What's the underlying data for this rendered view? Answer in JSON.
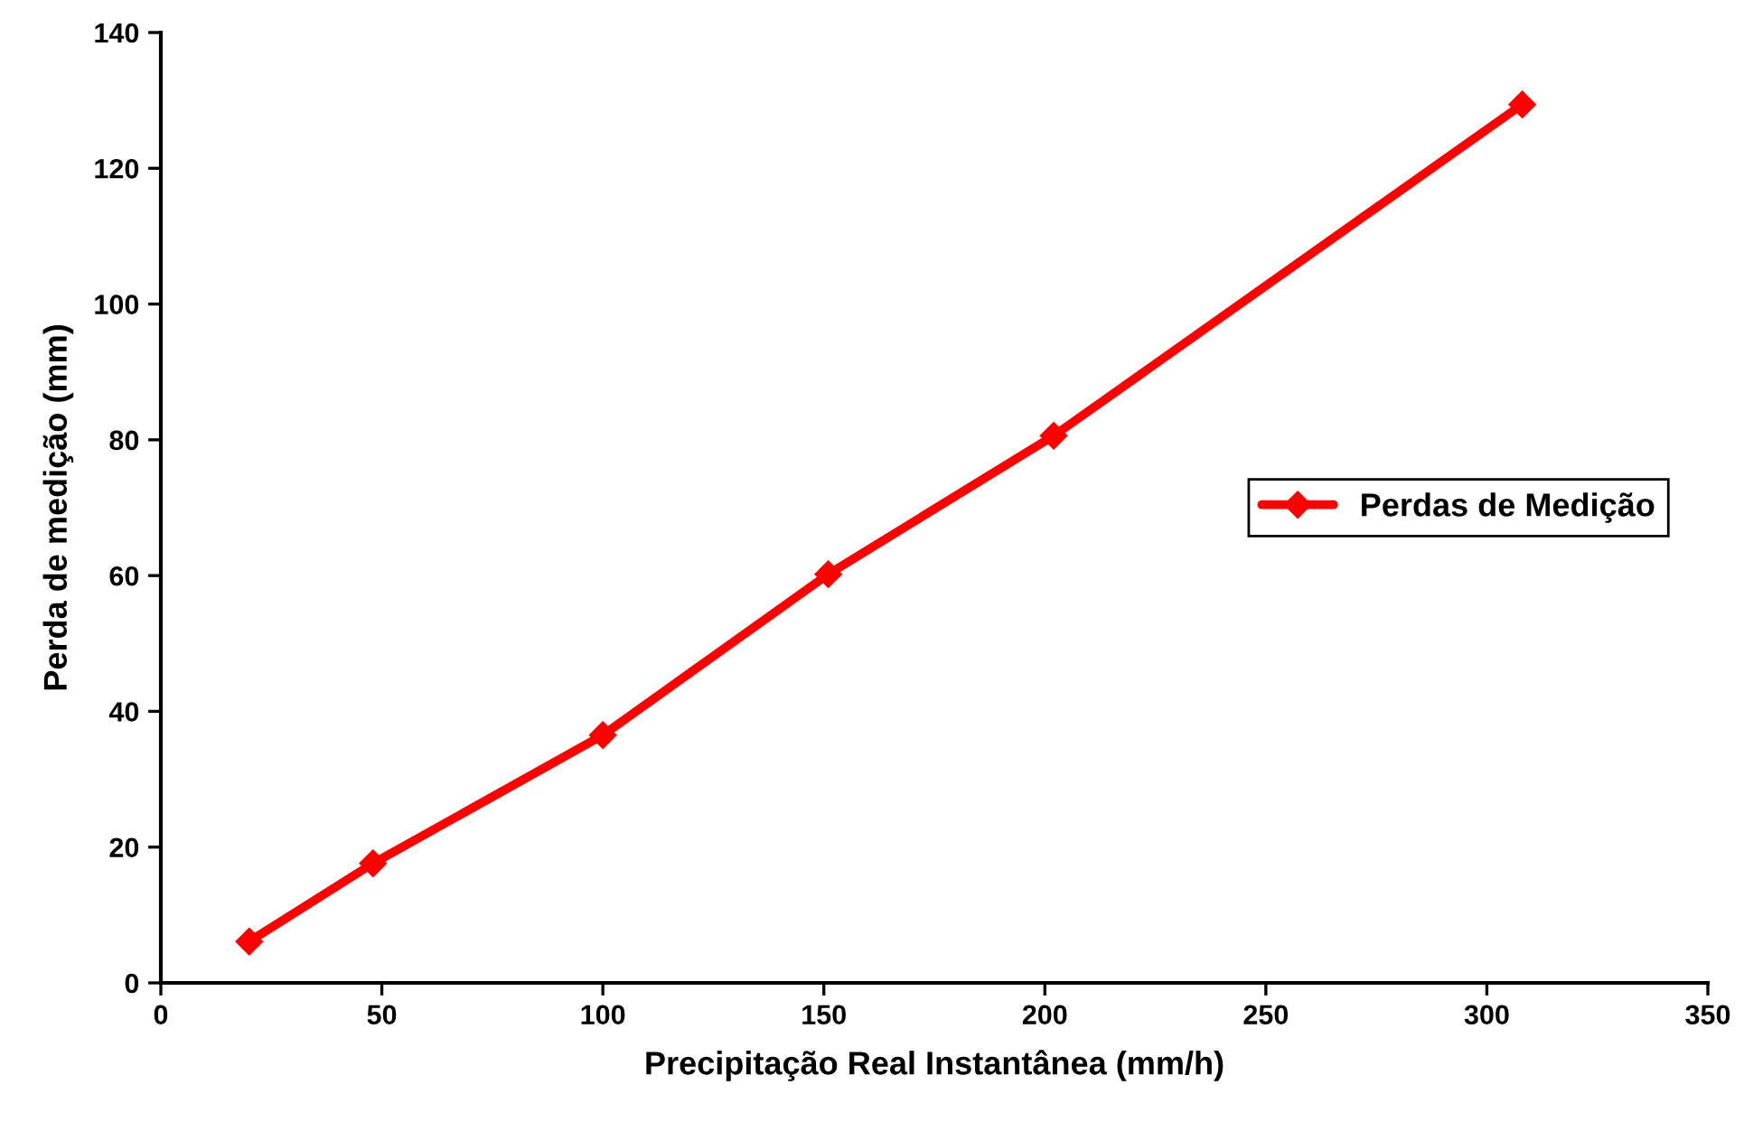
{
  "chart_data": {
    "type": "line",
    "xlabel": "Precipitação Real Instantânea (mm/h)",
    "ylabel": "Perda de medição (mm)",
    "series": [
      {
        "name": "Perdas de Medição",
        "color": "#ff0000",
        "x": [
          20,
          48,
          100,
          151,
          202,
          308
        ],
        "values": [
          6.1,
          17.6,
          36.5,
          60.2,
          80.6,
          129.4
        ]
      }
    ],
    "xlim": [
      0,
      350
    ],
    "xticks": [
      0,
      50,
      100,
      150,
      200,
      250,
      300,
      350
    ],
    "ylim": [
      0,
      140
    ],
    "yticks": [
      0,
      20,
      40,
      60,
      80,
      100,
      120,
      140
    ],
    "grid": false,
    "legend": "right",
    "marker": "diamond",
    "line_style": "solid"
  }
}
